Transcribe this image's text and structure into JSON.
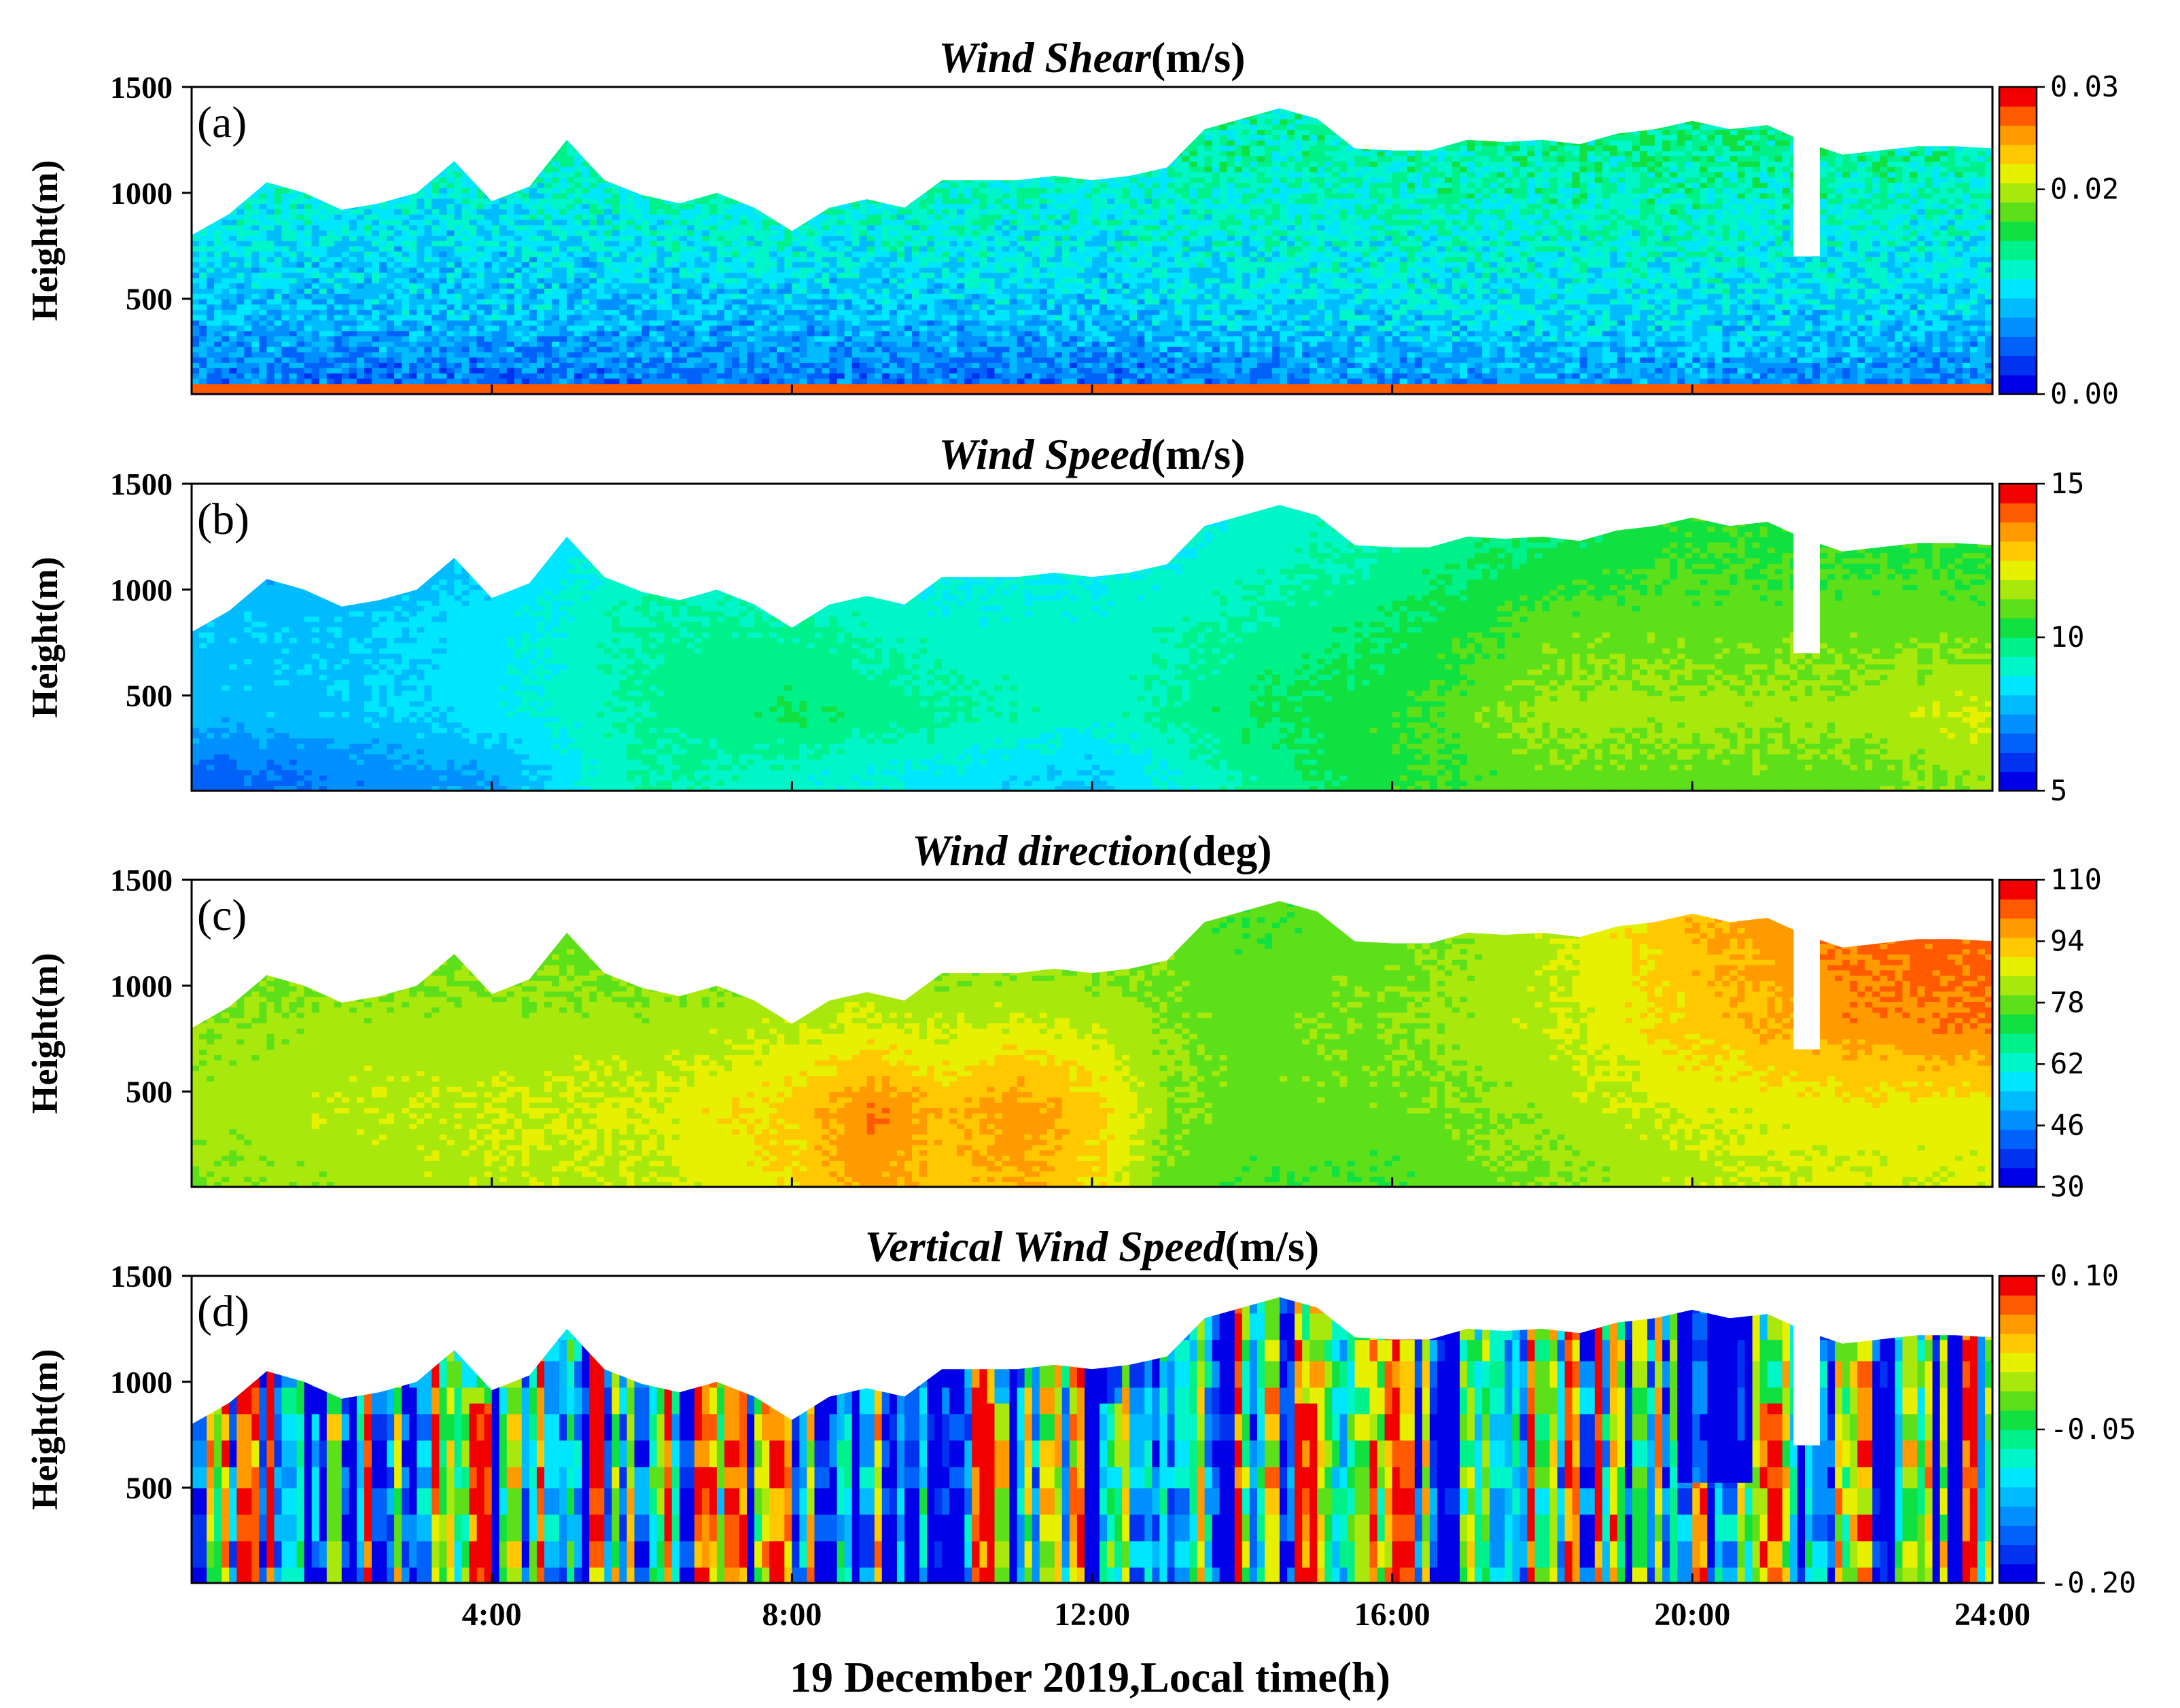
{
  "chart_data": {
    "type": "heatmap",
    "x_axis": {
      "label": "19 December 2019,Local time(h)",
      "range_h": [
        0,
        24
      ],
      "ticks_h": [
        4,
        8,
        12,
        16,
        20,
        24
      ],
      "tick_labels": [
        "4:00",
        "8:00",
        "12:00",
        "16:00",
        "20:00",
        "24:00"
      ]
    },
    "y_axis": {
      "label": "Height(m)",
      "range_m": [
        50,
        1500
      ],
      "ticks": [
        500,
        1000,
        1500
      ],
      "tick_labels": [
        "500",
        "1000",
        "1500"
      ]
    },
    "data_top_height_m": {
      "times_h": [
        0,
        0.5,
        1,
        1.5,
        2,
        2.5,
        3,
        3.5,
        4,
        4.5,
        5,
        5.5,
        6,
        6.5,
        7,
        7.5,
        8,
        8.5,
        9,
        9.5,
        10,
        10.5,
        11,
        11.5,
        12,
        12.5,
        13,
        13.5,
        14,
        14.5,
        15,
        15.5,
        16,
        16.5,
        17,
        17.5,
        18,
        18.5,
        19,
        19.5,
        20,
        20.5,
        21,
        21.5,
        22,
        22.5,
        23,
        23.5,
        24
      ],
      "heights_m": [
        800,
        900,
        1050,
        1000,
        920,
        950,
        1000,
        1150,
        960,
        1030,
        1250,
        1060,
        990,
        950,
        1000,
        930,
        820,
        930,
        970,
        930,
        1060,
        1060,
        1060,
        1080,
        1060,
        1080,
        1120,
        1300,
        1350,
        1400,
        1350,
        1210,
        1200,
        1200,
        1250,
        1240,
        1250,
        1230,
        1280,
        1300,
        1340,
        1300,
        1320,
        1240,
        1180,
        1200,
        1220,
        1220,
        1210
      ],
      "gap_time_range_h": [
        21.35,
        21.7
      ],
      "gap_bottom_height_m": 700
    },
    "panels": [
      {
        "id": "a",
        "panel_label": "(a)",
        "title_italic": "Wind Shear",
        "title_unit": "(m/s)",
        "variable": "wind shear",
        "colorbar": {
          "min": 0.0,
          "max": 0.03,
          "levels": 16,
          "tick_values": [
            0.0,
            0.02,
            0.03
          ],
          "tick_labels": [
            "0.00",
            "0.02",
            "0.03"
          ]
        },
        "field_description": {
          "typical_range": [
            0.002,
            0.015
          ],
          "rows_time_h": [
            0,
            4,
            8,
            12,
            16,
            20,
            24
          ],
          "rows_height_m": [
            100,
            400,
            800,
            1200
          ],
          "representative_values": [
            [
              0.006,
              0.005,
              0.006,
              0.005,
              0.007,
              0.007,
              0.006
            ],
            [
              0.008,
              0.009,
              0.008,
              0.009,
              0.01,
              0.01,
              0.009
            ],
            [
              0.011,
              0.01,
              0.012,
              0.011,
              0.012,
              0.012,
              0.011
            ],
            [
              0.013,
              0.013,
              0.014,
              0.013,
              0.013,
              0.014,
              0.013
            ]
          ],
          "near_surface_line_value": 0.028
        }
      },
      {
        "id": "b",
        "panel_label": "(b)",
        "title_italic": "Wind Speed",
        "title_unit": "(m/s)",
        "variable": "horizontal wind speed",
        "colorbar": {
          "min": 5,
          "max": 15,
          "levels": 16,
          "tick_values": [
            5,
            10,
            15
          ],
          "tick_labels": [
            "5",
            "10",
            "15"
          ]
        },
        "field_description": {
          "typical_range": [
            6,
            13
          ],
          "rows_time_h": [
            0,
            2,
            4,
            6,
            8,
            10,
            12,
            14,
            16,
            18,
            20,
            22,
            24
          ],
          "rows_height_m": [
            100,
            400,
            800,
            1200
          ],
          "representative_values": [
            [
              6.5,
              7.0,
              7.5,
              9.5,
              9.0,
              8.5,
              8.0,
              9.5,
              10.5,
              11.0,
              11.0,
              11.0,
              11.5
            ],
            [
              7.8,
              8.0,
              8.5,
              9.5,
              10.0,
              9.5,
              9.0,
              10.0,
              10.5,
              11.5,
              11.5,
              11.5,
              12.0
            ],
            [
              8.0,
              8.0,
              8.5,
              9.5,
              9.5,
              9.0,
              9.0,
              9.5,
              10.0,
              11.0,
              11.0,
              11.0,
              11.0
            ],
            [
              7.5,
              7.5,
              8.0,
              9.0,
              8.5,
              8.5,
              8.5,
              9.0,
              9.5,
              10.0,
              10.5,
              10.5,
              10.5
            ]
          ]
        }
      },
      {
        "id": "c",
        "panel_label": "(c)",
        "title_italic": "Wind direction",
        "title_unit": "(deg)",
        "variable": "wind direction",
        "colorbar": {
          "min": 30,
          "max": 110,
          "levels": 16,
          "tick_values": [
            30,
            46,
            62,
            78,
            94,
            110
          ],
          "tick_labels": [
            "30",
            "46",
            "62",
            "78",
            "94",
            "110"
          ]
        },
        "field_description": {
          "typical_range": [
            70,
            100
          ],
          "rows_time_h": [
            0,
            2,
            4,
            6,
            8,
            9,
            10,
            11,
            12,
            13,
            14,
            16,
            18,
            20,
            22,
            24
          ],
          "rows_height_m": [
            100,
            400,
            800,
            1200
          ],
          "representative_values": [
            [
              80,
              82,
              84,
              84,
              90,
              98,
              92,
              96,
              90,
              78,
              76,
              76,
              80,
              84,
              86,
              86
            ],
            [
              82,
              84,
              85,
              86,
              92,
              100,
              94,
              98,
              92,
              80,
              78,
              78,
              82,
              86,
              88,
              88
            ],
            [
              80,
              82,
              82,
              82,
              84,
              86,
              84,
              86,
              84,
              80,
              78,
              80,
              84,
              92,
              98,
              100
            ],
            [
              76,
              78,
              78,
              78,
              78,
              78,
              78,
              78,
              78,
              78,
              76,
              78,
              84,
              94,
              100,
              102
            ]
          ]
        }
      },
      {
        "id": "d",
        "panel_label": "(d)",
        "title_italic": "Vertical Wind Speed",
        "title_unit": "(m/s)",
        "variable": "vertical wind speed",
        "colorbar": {
          "min": -0.2,
          "max": 0.1,
          "levels": 16,
          "tick_values": [
            -0.2,
            -0.05,
            0.1
          ],
          "tick_labels": [
            "-0.20",
            "-0.05",
            "0.10"
          ]
        },
        "field_description": {
          "typical_range": [
            -0.2,
            0.1
          ],
          "pattern": "vertical streaks of alternating updraft (red) and downdraft (blue) columns throughout the day",
          "strong_downdraft_near_h": [
            20.0,
            20.5
          ],
          "strong_updraft_near_h": [
            3.8,
            10.7,
            12.2,
            14.8,
            21.0
          ]
        }
      }
    ]
  }
}
